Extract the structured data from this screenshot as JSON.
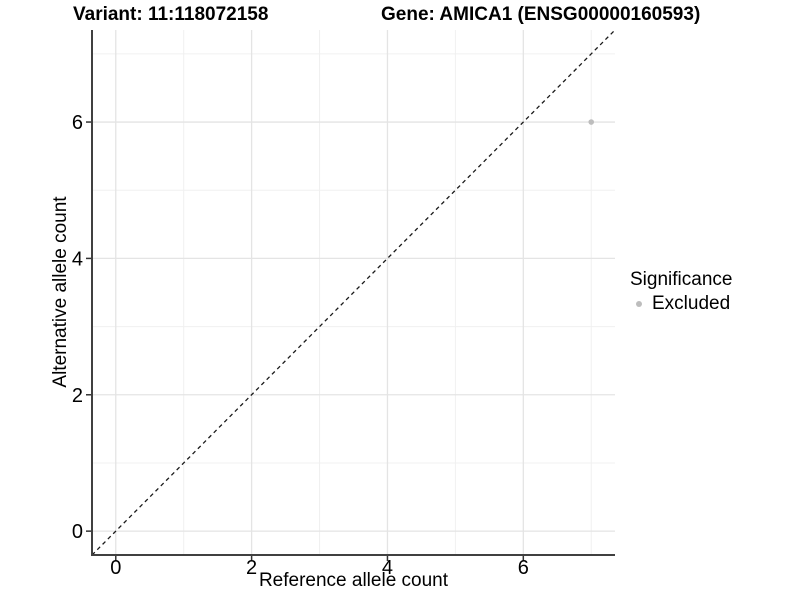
{
  "figure": {
    "title_variant": "Variant: 11:118072158",
    "title_gene": "Gene: AMICA1 (ENSG00000160593)"
  },
  "chart_data": {
    "type": "scatter",
    "title": "Variant: 11:118072158 — Gene: AMICA1 (ENSG00000160593)",
    "xlabel": "Reference allele count",
    "ylabel": "Alternative allele count",
    "xlim": [
      -0.35,
      7.35
    ],
    "ylim": [
      -0.35,
      7.35
    ],
    "x_ticks": [
      0,
      2,
      4,
      6
    ],
    "y_ticks": [
      0,
      2,
      4,
      6
    ],
    "x_minor_gridlines": [
      1,
      3,
      5,
      7
    ],
    "y_minor_gridlines": [
      1,
      3,
      5,
      7
    ],
    "grid": true,
    "points": [
      {
        "x": 7,
        "y": 6,
        "significance": "Excluded"
      }
    ],
    "identity_line": {
      "style": "dashed",
      "from": [
        -0.35,
        -0.35
      ],
      "to": [
        7.35,
        7.35
      ]
    },
    "legend": {
      "title": "Significance",
      "position": "right",
      "entries": [
        {
          "label": "Excluded",
          "color": "#bdbdbd"
        }
      ]
    }
  },
  "colors": {
    "background": "#ffffff",
    "axis_line": "#404040",
    "tick_mark": "#333333",
    "grid_major": "#e4e4e4",
    "grid_minor": "#f0f0f0",
    "dashed_line": "#1a1a1a",
    "point": "#bdbdbd",
    "text": "#000000"
  }
}
